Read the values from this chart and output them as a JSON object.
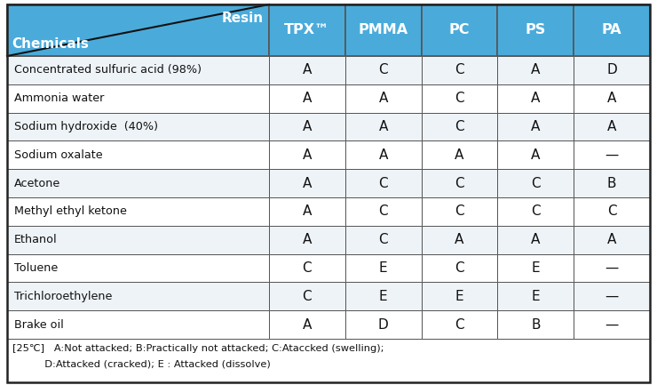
{
  "title_resin": "Resin",
  "title_chemicals": "Chemicals",
  "columns": [
    "TPX™",
    "PMMA",
    "PC",
    "PS",
    "PA"
  ],
  "rows": [
    "Concentrated sulfuric acid (98%)",
    "Ammonia water",
    "Sodium hydroxide  (40%)",
    "Sodium oxalate",
    "Acetone",
    "Methyl ethyl ketone",
    "Ethanol",
    "Toluene",
    "Trichloroethylene",
    "Brake oil"
  ],
  "data": [
    [
      "A",
      "C",
      "C",
      "A",
      "D"
    ],
    [
      "A",
      "A",
      "C",
      "A",
      "A"
    ],
    [
      "A",
      "A",
      "C",
      "A",
      "A"
    ],
    [
      "A",
      "A",
      "A",
      "A",
      "—"
    ],
    [
      "A",
      "C",
      "C",
      "C",
      "B"
    ],
    [
      "A",
      "C",
      "C",
      "C",
      "C"
    ],
    [
      "A",
      "C",
      "A",
      "A",
      "A"
    ],
    [
      "C",
      "E",
      "C",
      "E",
      "—"
    ],
    [
      "C",
      "E",
      "E",
      "E",
      "—"
    ],
    [
      "A",
      "D",
      "C",
      "B",
      "—"
    ]
  ],
  "header_bg": "#4AABDB",
  "header_text_color": "#ffffff",
  "row_bg_odd": "#eef3f8",
  "row_bg_even": "#ffffff",
  "border_color": "#555555",
  "text_color": "#111111",
  "footer_line1": "[25℃]   A:Not attacked; B:Practically not attacked; C:Ataccked (swelling);",
  "footer_line2": "          D:Attacked (cracked); E : Attacked (dissolve)",
  "fig_bg": "#ffffff",
  "outer_border": "#222222"
}
